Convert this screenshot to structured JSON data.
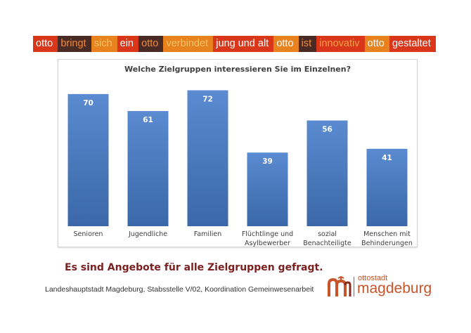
{
  "banner": {
    "words": [
      {
        "text": "otto",
        "bg": "#d9361a",
        "fg": "#ffffff"
      },
      {
        "text": "bringt",
        "bg": "#4a2a25",
        "fg": "#f08a3a"
      },
      {
        "text": "sich",
        "bg": "#e8821e",
        "fg": "#f7c46a"
      },
      {
        "text": "ein",
        "bg": "#d9361a",
        "fg": "#ffffff"
      },
      {
        "text": "otto",
        "bg": "#4a2a25",
        "fg": "#f08a3a"
      },
      {
        "text": "verbindet",
        "bg": "#e8821e",
        "fg": "#f7c46a"
      },
      {
        "text": "jung und alt",
        "bg": "#d9361a",
        "fg": "#ffffff"
      },
      {
        "text": "otto",
        "bg": "#e8821e",
        "fg": "#ffffff"
      },
      {
        "text": "ist",
        "bg": "#4a2a25",
        "fg": "#f08a3a"
      },
      {
        "text": "innovativ",
        "bg": "#d9361a",
        "fg": "#f7a14a"
      },
      {
        "text": "otto",
        "bg": "#e8821e",
        "fg": "#ffffff"
      },
      {
        "text": "gestaltet",
        "bg": "#d9361a",
        "fg": "#ffffff"
      }
    ]
  },
  "chart_data": {
    "type": "bar",
    "title": "Welche Zielgruppen interessieren Sie im Einzelnen?",
    "categories": [
      [
        "Senioren"
      ],
      [
        "Jugendliche"
      ],
      [
        "Familien"
      ],
      [
        "Flüchtlinge und",
        "Asylbewerber"
      ],
      [
        "sozial",
        "Benachteiligte"
      ],
      [
        "Menschen mit",
        "Behinderungen"
      ]
    ],
    "values": [
      70,
      61,
      72,
      39,
      56,
      41
    ],
    "ylim": [
      0,
      80
    ],
    "grid": false,
    "legend": "none",
    "bar_color": "#4f7fc0",
    "bar_color_dark": "#3a68a8",
    "label_color": "#ffffff"
  },
  "conclusion": "Es sind Angebote für alle Zielgruppen gefragt.",
  "footer": "Landeshauptstadt Magdeburg, Stabsstelle V/02, Koordination Gemeinwesenarbeit",
  "logo": {
    "small": "ottostadt",
    "big": "magdeburg",
    "color": "#c8542a"
  }
}
